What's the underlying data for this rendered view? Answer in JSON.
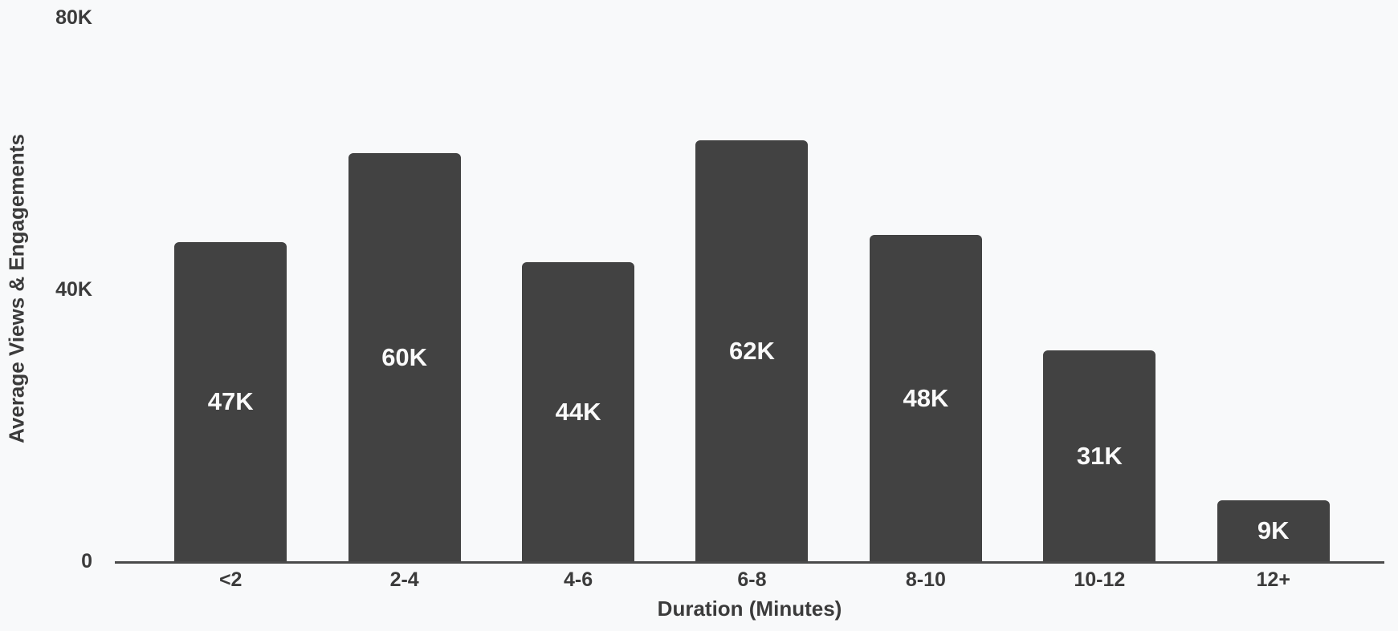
{
  "chart_data": {
    "type": "bar",
    "categories": [
      "<2",
      "2-4",
      "4-6",
      "6-8",
      "8-10",
      "10-12",
      "12+"
    ],
    "values": [
      47,
      60,
      44,
      62,
      48,
      31,
      9
    ],
    "value_labels": [
      "47K",
      "60K",
      "44K",
      "62K",
      "48K",
      "31K",
      "9K"
    ],
    "title": "",
    "xlabel": "Duration (Minutes)",
    "ylabel": "Average Views & Engagements",
    "ylim": [
      0,
      80
    ],
    "y_ticks": [
      {
        "value": 0,
        "label": "0"
      },
      {
        "value": 40,
        "label": "40K"
      },
      {
        "value": 80,
        "label": "80K"
      }
    ],
    "grid": false,
    "legend": false
  },
  "colors": {
    "background": "#f8f9fa",
    "bar_fill": "#424242",
    "bar_label_text": "#fafafa",
    "axis_line": "#4a4a4a",
    "axis_text": "#3b3b3b"
  }
}
